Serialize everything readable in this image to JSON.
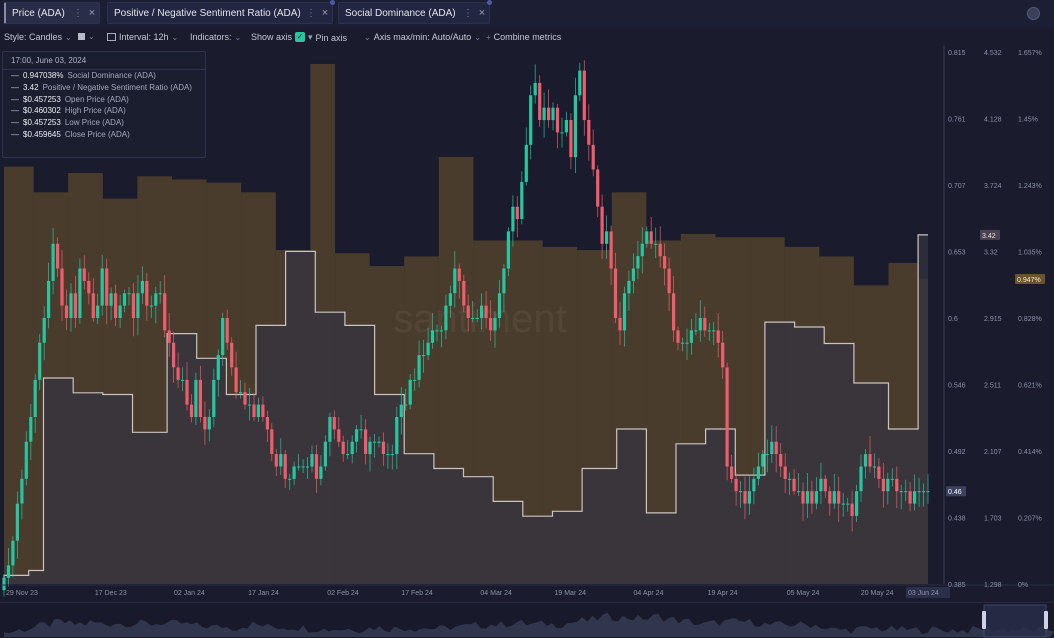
{
  "tabs": [
    {
      "label": "Price (ADA)",
      "more": "⋮",
      "close": "×"
    },
    {
      "label": "Positive / Negative Sentiment Ratio (ADA)",
      "more": "⋮",
      "close": "×"
    },
    {
      "label": "Social Dominance (ADA)",
      "more": "⋮",
      "close": "×"
    }
  ],
  "toolbar": {
    "style": "Style: Candles",
    "interval": "Interval: 12h",
    "indicators": "Indicators:",
    "show_axis": "Show axis",
    "pin_axis": "Pin axis",
    "axis_maxmin": "Axis max/min: Auto/Auto",
    "combine": "Combine metrics"
  },
  "tooltip": {
    "date": "17:00, June 03, 2024",
    "rows": [
      {
        "value": "0.947038%",
        "label": "Social Dominance (ADA)"
      },
      {
        "value": "3.42",
        "label": "Positive / Negative Sentiment Ratio (ADA)"
      },
      {
        "value": "$0.457253",
        "label": "Open Price (ADA)"
      },
      {
        "value": "$0.460302",
        "label": "High Price (ADA)"
      },
      {
        "value": "$0.457253",
        "label": "Low Price (ADA)"
      },
      {
        "value": "$0.459645",
        "label": "Close Price (ADA)"
      }
    ]
  },
  "colors": {
    "background": "#1a1c2e",
    "plot_background": "#272734",
    "candle_up": "#26c6a0",
    "candle_down": "#ef5d6c",
    "sentiment_line": "#c8c2c2",
    "dominance_bars": "#8a6a2c"
  },
  "chart_data": {
    "type": "line",
    "watermark": "santiment",
    "x_ticks": [
      "29 Nov 23",
      "17 Dec 23",
      "02 Jan 24",
      "17 Jan 24",
      "02 Feb 24",
      "17 Feb 24",
      "04 Mar 24",
      "19 Mar 24",
      "04 Apr 24",
      "19 Apr 24",
      "05 May 24",
      "20 May 24",
      "03 Jun 24"
    ],
    "price_axis": {
      "ticks": [
        "0.815",
        "0.761",
        "0.707",
        "0.653",
        "0.6",
        "0.546",
        "0.492",
        "0.438",
        "0.385"
      ],
      "min": 0.385,
      "max": 0.815,
      "current_label": "0.46"
    },
    "sentiment_axis": {
      "ticks": [
        "4.532",
        "4.128",
        "3.724",
        "3.32",
        "2.915",
        "2.511",
        "2.107",
        "1.703",
        "1.298"
      ],
      "min": 1.298,
      "max": 4.532,
      "current_label": "3.42"
    },
    "dominance_axis": {
      "ticks": [
        "1.657%",
        "1.45%",
        "1.243%",
        "1.035%",
        "0.828%",
        "0.621%",
        "0.414%",
        "0.207%",
        "0%"
      ],
      "min": 0,
      "max": 1.657,
      "current_label": "0.947%"
    },
    "series": [
      {
        "name": "Price (ADA)",
        "kind": "candles",
        "close": [
          0.39,
          0.4,
          0.42,
          0.45,
          0.47,
          0.5,
          0.52,
          0.55,
          0.58,
          0.6,
          0.63,
          0.66,
          0.64,
          0.61,
          0.6,
          0.62,
          0.6,
          0.64,
          0.63,
          0.62,
          0.6,
          0.61,
          0.64,
          0.61,
          0.62,
          0.6,
          0.61,
          0.62,
          0.62,
          0.6,
          0.62,
          0.63,
          0.61,
          0.61,
          0.62,
          0.62,
          0.59,
          0.58,
          0.56,
          0.55,
          0.55,
          0.53,
          0.52,
          0.55,
          0.52,
          0.51,
          0.52,
          0.55,
          0.57,
          0.6,
          0.58,
          0.56,
          0.54,
          0.54,
          0.53,
          0.53,
          0.52,
          0.53,
          0.52,
          0.51,
          0.49,
          0.48,
          0.49,
          0.47,
          0.47,
          0.48,
          0.48,
          0.48,
          0.48,
          0.49,
          0.47,
          0.48,
          0.5,
          0.52,
          0.51,
          0.5,
          0.49,
          0.49,
          0.5,
          0.51,
          0.51,
          0.49,
          0.5,
          0.5,
          0.5,
          0.49,
          0.49,
          0.49,
          0.52,
          0.53,
          0.53,
          0.55,
          0.55,
          0.57,
          0.57,
          0.58,
          0.59,
          0.59,
          0.59,
          0.61,
          0.62,
          0.64,
          0.63,
          0.61,
          0.6,
          0.6,
          0.6,
          0.61,
          0.6,
          0.59,
          0.6,
          0.62,
          0.64,
          0.67,
          0.69,
          0.68,
          0.71,
          0.74,
          0.78,
          0.79,
          0.76,
          0.77,
          0.76,
          0.77,
          0.75,
          0.75,
          0.76,
          0.73,
          0.78,
          0.8,
          0.76,
          0.74,
          0.72,
          0.69,
          0.66,
          0.67,
          0.64,
          0.6,
          0.59,
          0.62,
          0.63,
          0.64,
          0.65,
          0.66,
          0.67,
          0.66,
          0.66,
          0.65,
          0.64,
          0.62,
          0.59,
          0.58,
          0.58,
          0.58,
          0.59,
          0.59,
          0.6,
          0.59,
          0.59,
          0.59,
          0.58,
          0.56,
          0.48,
          0.47,
          0.46,
          0.46,
          0.45,
          0.46,
          0.47,
          0.48,
          0.49,
          0.49,
          0.5,
          0.49,
          0.48,
          0.47,
          0.47,
          0.46,
          0.46,
          0.45,
          0.46,
          0.45,
          0.46,
          0.47,
          0.46,
          0.45,
          0.46,
          0.45,
          0.45,
          0.45,
          0.44,
          0.46,
          0.48,
          0.49,
          0.48,
          0.48,
          0.47,
          0.46,
          0.47,
          0.47,
          0.46,
          0.46,
          0.46,
          0.45,
          0.46,
          0.46,
          0.46,
          0.46
        ]
      },
      {
        "name": "Positive / Negative Sentiment Ratio (ADA)",
        "kind": "step-line",
        "points": [
          [
            "29 Nov 23",
            1.3
          ],
          [
            "29 Nov 23",
            1.35
          ],
          [
            "04 Dec 23",
            1.38
          ],
          [
            "07 Dec 23",
            2.55
          ],
          [
            "13 Dec 23",
            2.46
          ],
          [
            "19 Dec 23",
            2.45
          ],
          [
            "25 Dec 23",
            2.22
          ],
          [
            "01 Jan 24",
            2.82
          ],
          [
            "07 Jan 24",
            2.67
          ],
          [
            "13 Jan 24",
            2.45
          ],
          [
            "19 Jan 24",
            2.87
          ],
          [
            "25 Jan 24",
            3.32
          ],
          [
            "31 Jan 24",
            2.95
          ],
          [
            "06 Feb 24",
            2.87
          ],
          [
            "12 Feb 24",
            2.45
          ],
          [
            "18 Feb 24",
            2.09
          ],
          [
            "24 Feb 24",
            2.0
          ],
          [
            "01 Mar 24",
            1.95
          ],
          [
            "07 Mar 24",
            1.8
          ],
          [
            "13 Mar 24",
            1.71
          ],
          [
            "19 Mar 24",
            1.74
          ],
          [
            "25 Mar 24",
            2.0
          ],
          [
            "01 Apr 24",
            2.24
          ],
          [
            "07 Apr 24",
            1.73
          ],
          [
            "13 Apr 24",
            2.15
          ],
          [
            "19 Apr 24",
            2.24
          ],
          [
            "25 Apr 24",
            1.96
          ],
          [
            "01 May 24",
            2.89
          ],
          [
            "07 May 24",
            2.86
          ],
          [
            "13 May 24",
            2.76
          ],
          [
            "19 May 24",
            2.52
          ],
          [
            "26 May 24",
            2.24
          ],
          [
            "01 Jun 24",
            3.42
          ],
          [
            "03 Jun 24",
            3.42
          ]
        ]
      },
      {
        "name": "Social Dominance (ADA)",
        "kind": "bars",
        "points": [
          [
            "29 Nov 23",
            1.3
          ],
          [
            "05 Dec 23",
            1.22
          ],
          [
            "12 Dec 23",
            1.28
          ],
          [
            "19 Dec 23",
            1.2
          ],
          [
            "26 Dec 23",
            1.27
          ],
          [
            "02 Jan 24",
            1.26
          ],
          [
            "09 Jan 24",
            1.25
          ],
          [
            "16 Jan 24",
            1.22
          ],
          [
            "23 Jan 24",
            1.04
          ],
          [
            "30 Jan 24",
            1.62
          ],
          [
            "04 Feb 24",
            1.03
          ],
          [
            "11 Feb 24",
            0.99
          ],
          [
            "18 Feb 24",
            1.02
          ],
          [
            "25 Feb 24",
            1.33
          ],
          [
            "03 Mar 24",
            1.07
          ],
          [
            "10 Mar 24",
            1.07
          ],
          [
            "17 Mar 24",
            1.05
          ],
          [
            "24 Mar 24",
            1.04
          ],
          [
            "31 Mar 24",
            1.22
          ],
          [
            "07 Apr 24",
            1.07
          ],
          [
            "14 Apr 24",
            1.09
          ],
          [
            "21 Apr 24",
            1.08
          ],
          [
            "28 Apr 24",
            1.08
          ],
          [
            "05 May 24",
            1.05
          ],
          [
            "12 May 24",
            1.02
          ],
          [
            "19 May 24",
            0.93
          ],
          [
            "26 May 24",
            1.0
          ],
          [
            "01 Jun 24",
            0.95
          ]
        ]
      }
    ]
  }
}
